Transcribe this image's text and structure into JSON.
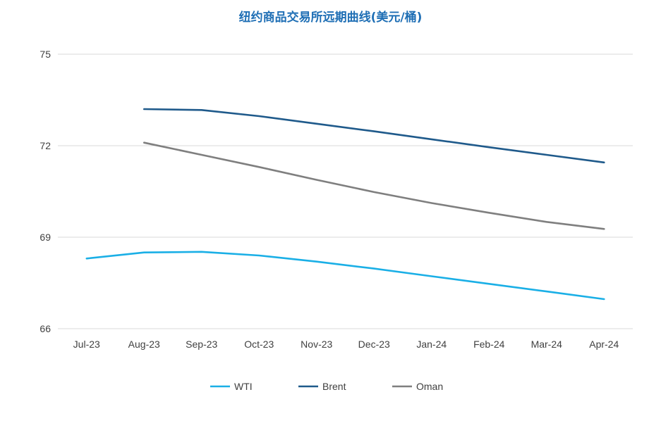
{
  "chart_data": {
    "type": "line",
    "title": "纽约商品交易所远期曲线(美元/桶)",
    "categories": [
      "Jul-23",
      "Aug-23",
      "Sep-23",
      "Oct-23",
      "Nov-23",
      "Dec-23",
      "Jan-24",
      "Feb-24",
      "Mar-24",
      "Apr-24"
    ],
    "yticks": [
      "66",
      "69",
      "72",
      "75"
    ],
    "ylim": [
      66,
      75
    ],
    "grid": true,
    "legend_position": "bottom",
    "series": [
      {
        "name": "WTI",
        "color": "#1aafe6",
        "values": [
          68.3,
          68.5,
          68.52,
          68.4,
          68.2,
          67.97,
          67.72,
          67.47,
          67.22,
          66.97
        ]
      },
      {
        "name": "Brent",
        "color": "#1f5a8b",
        "values": [
          null,
          73.2,
          73.17,
          72.97,
          72.72,
          72.47,
          72.21,
          71.95,
          71.7,
          71.45
        ]
      },
      {
        "name": "Oman",
        "color": "#7f7f7f",
        "values": [
          null,
          72.1,
          71.7,
          71.3,
          70.88,
          70.48,
          70.12,
          69.8,
          69.5,
          69.27
        ]
      }
    ]
  }
}
